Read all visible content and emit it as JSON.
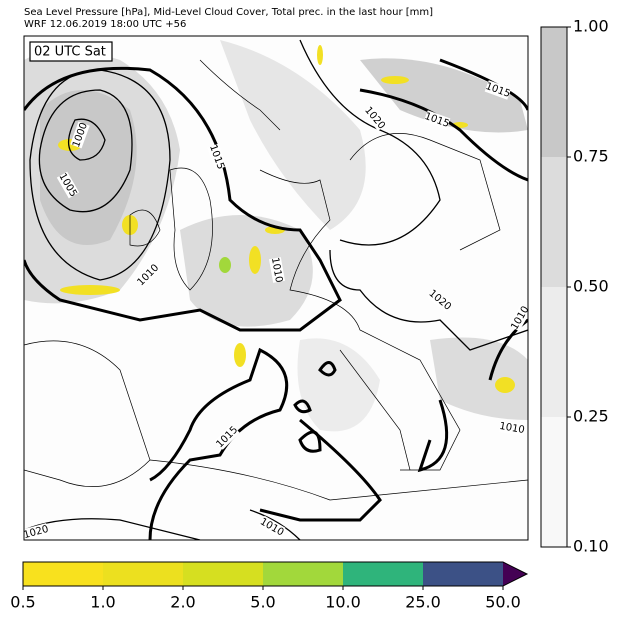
{
  "header": {
    "line1": "Sea Level Pressure [hPa], Mid-Level Cloud Cover, Total prec. in the last hour [mm]",
    "line2": "WRF 12.06.2019 18:00 UTC +56"
  },
  "map": {
    "time_label": "02 UTC Sat",
    "isobar_labels": [
      "1000",
      "1005",
      "1010",
      "1015",
      "1020",
      "1015",
      "1015",
      "1010",
      "1020",
      "1015",
      "1010",
      "1020",
      "1010",
      "1010"
    ]
  },
  "cloud_scale": {
    "labels": [
      "1.00",
      "0.75",
      "0.50",
      "0.25",
      "0.10"
    ],
    "colors": [
      "#c8c8c8",
      "#dcdcdc",
      "#ececec",
      "#f8f8f8"
    ]
  },
  "precip_scale": {
    "labels": [
      "0.5",
      "1.0",
      "2.0",
      "5.0",
      "10.0",
      "25.0",
      "50.0"
    ],
    "colors": [
      "#f8e11e",
      "#ece01f",
      "#d6df20",
      "#a2d83b",
      "#2fb47b",
      "#3c5186"
    ],
    "over_color": "#440154"
  }
}
